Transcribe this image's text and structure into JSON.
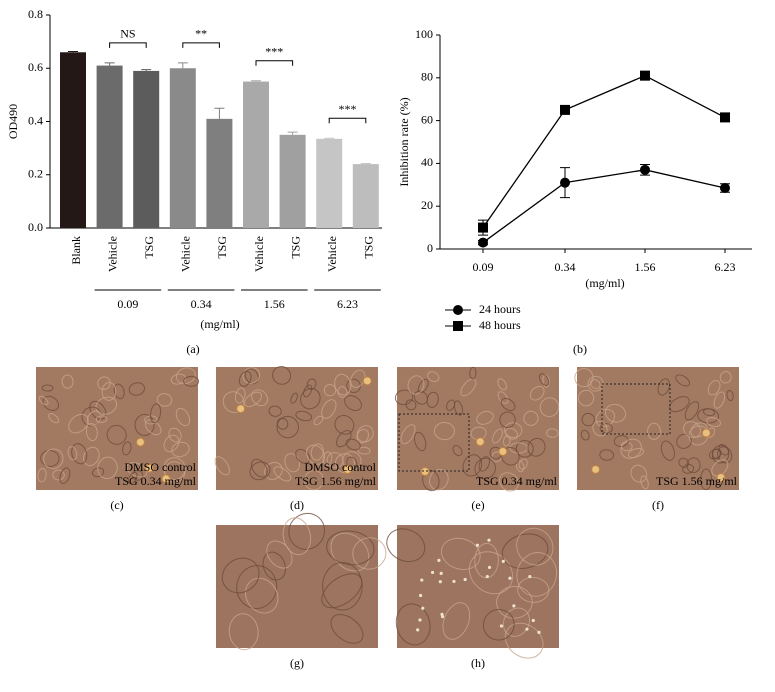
{
  "chart_data": [
    {
      "type": "bar",
      "panel": "(a)",
      "ylabel": "OD490",
      "xlabel": "(mg/ml)",
      "ylim": [
        0,
        0.8
      ],
      "yticks": [
        {
          "value": 0,
          "label": "0.0"
        },
        0.2,
        0.4,
        0.6,
        0.8
      ],
      "categories": [
        "Blank",
        "Vehicle",
        "TSG",
        "Vehicle",
        "TSG",
        "Vehicle",
        "TSG",
        "Vehicle",
        "TSG"
      ],
      "values": [
        0.66,
        0.61,
        0.59,
        0.6,
        0.41,
        0.55,
        0.35,
        0.335,
        0.24
      ],
      "errors": [
        0.003,
        0.01,
        0.005,
        0.02,
        0.04,
        0.003,
        0.01,
        0.002,
        0.002
      ],
      "colors": [
        "#231815",
        "#6b6b6b",
        "#5c5c5c",
        "#8a8a8a",
        "#7f7f7f",
        "#a9a9a9",
        "#a0a0a0",
        "#c5c5c5",
        "#bdbdbd"
      ],
      "groups": [
        "0.09",
        "0.34",
        "1.56",
        "6.23"
      ],
      "significance": [
        "NS",
        "**",
        "***",
        "***"
      ]
    },
    {
      "type": "line",
      "panel": "(b)",
      "ylabel": "Inhibition rate (%)",
      "xlabel": "(mg/ml)",
      "categories": [
        "0.09",
        "0.34",
        "1.56",
        "6.23"
      ],
      "ylim": [
        0,
        100
      ],
      "yticks": [
        0,
        20,
        40,
        60,
        80,
        100
      ],
      "series": [
        {
          "name": "24 hours",
          "marker": "circle",
          "color": "#000000",
          "values": [
            3,
            31,
            37,
            28.5
          ],
          "errors": [
            1,
            7,
            2.5,
            2
          ]
        },
        {
          "name": "48 hours",
          "marker": "square",
          "color": "#000000",
          "values": [
            10,
            65,
            81,
            61.5
          ],
          "errors": [
            3.5,
            1,
            2,
            2
          ]
        }
      ]
    }
  ],
  "micrographs": [
    {
      "panel": "(c)",
      "caption": [
        "DMSO control",
        "TSG 0.34 mg/ml"
      ]
    },
    {
      "panel": "(d)",
      "caption": [
        "DMSO control",
        "TSG 1.56 mg/ml"
      ]
    },
    {
      "panel": "(e)",
      "caption": [
        "TSG 0.34 mg/ml"
      ]
    },
    {
      "panel": "(f)",
      "caption": [
        "TSG 1.56 mg/ml"
      ]
    },
    {
      "panel": "(g)",
      "caption": []
    },
    {
      "panel": "(h)",
      "caption": []
    }
  ]
}
